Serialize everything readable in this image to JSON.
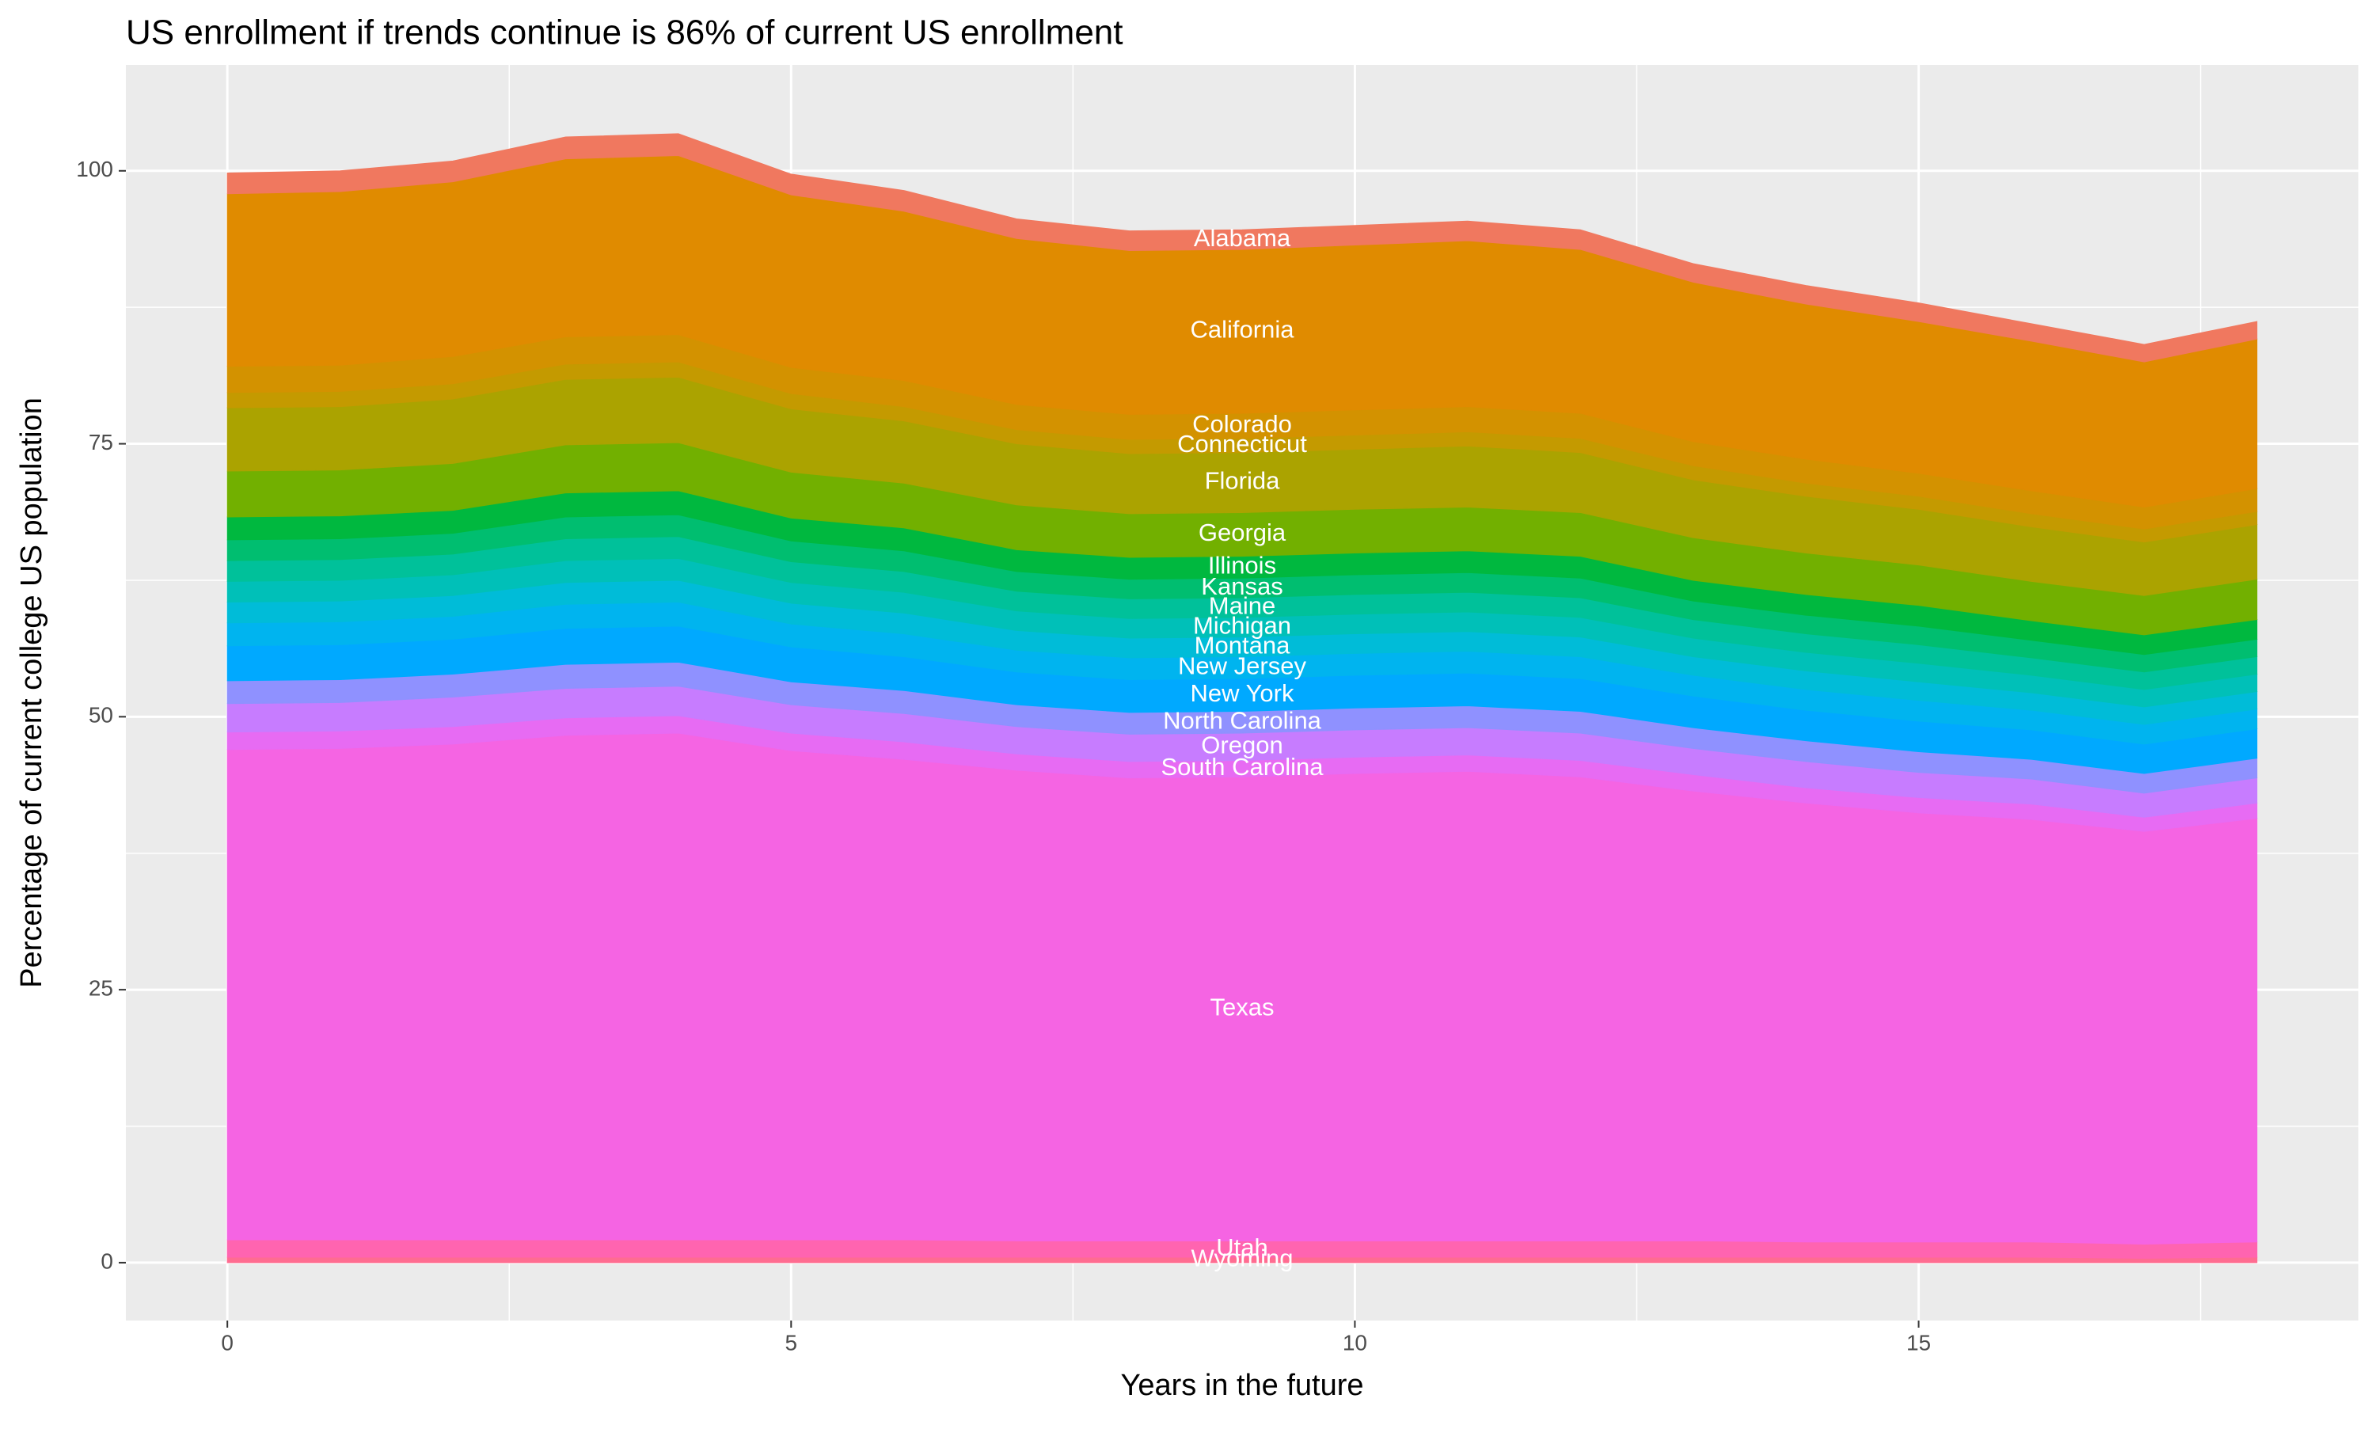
{
  "chart_data": {
    "type": "stacked_area",
    "title": "US enrollment if trends continue is 86% of current US enrollment",
    "x_label": "Years in the future",
    "y_label": "Percentage of current college US population",
    "x": [
      0,
      1,
      2,
      3,
      4,
      5,
      6,
      7,
      8,
      9,
      10,
      11,
      12,
      13,
      14,
      15,
      16,
      17,
      18
    ],
    "xlim": [
      -0.9,
      18.9
    ],
    "ylim": [
      -5.3,
      109.7
    ],
    "xticks": [
      0,
      5,
      10,
      15
    ],
    "yticks": [
      0,
      25,
      50,
      75,
      100
    ],
    "grid": true,
    "label_at_x": 9,
    "series": [
      {
        "name": "Wyoming",
        "color": "#ff6c91",
        "values": [
          0.5,
          0.5,
          0.5,
          0.5,
          0.5,
          0.5,
          0.5,
          0.5,
          0.5,
          0.5,
          0.5,
          0.5,
          0.5,
          0.5,
          0.5,
          0.5,
          0.5,
          0.4,
          0.5
        ]
      },
      {
        "name": "Utah",
        "color": "#ff64b0",
        "values": [
          1.6,
          1.6,
          1.6,
          1.6,
          1.6,
          1.6,
          1.6,
          1.5,
          1.5,
          1.5,
          1.5,
          1.5,
          1.5,
          1.5,
          1.4,
          1.4,
          1.4,
          1.3,
          1.4
        ]
      },
      {
        "name": "Texas",
        "color": "#f564e3",
        "values": [
          44.9,
          45.0,
          45.4,
          46.2,
          46.4,
          44.8,
          44.0,
          43.1,
          42.4,
          42.5,
          42.8,
          43.0,
          42.5,
          41.2,
          40.2,
          39.3,
          38.7,
          37.8,
          38.8
        ]
      },
      {
        "name": "South Carolina",
        "color": "#e76bf3",
        "values": [
          1.6,
          1.6,
          1.6,
          1.6,
          1.6,
          1.6,
          1.6,
          1.5,
          1.5,
          1.5,
          1.5,
          1.5,
          1.5,
          1.5,
          1.4,
          1.4,
          1.4,
          1.3,
          1.4
        ]
      },
      {
        "name": "Oregon",
        "color": "#c77cff",
        "values": [
          2.6,
          2.6,
          2.7,
          2.7,
          2.7,
          2.6,
          2.6,
          2.5,
          2.5,
          2.5,
          2.5,
          2.5,
          2.5,
          2.4,
          2.4,
          2.3,
          2.3,
          2.2,
          2.3
        ]
      },
      {
        "name": "North Carolina",
        "color": "#8f91ff",
        "values": [
          2.1,
          2.1,
          2.1,
          2.2,
          2.2,
          2.1,
          2.1,
          2.0,
          2.0,
          2.0,
          2.0,
          2.0,
          2.0,
          1.9,
          1.9,
          1.9,
          1.8,
          1.8,
          1.8
        ]
      },
      {
        "name": "New York",
        "color": "#00a9ff",
        "values": [
          3.2,
          3.2,
          3.2,
          3.3,
          3.3,
          3.2,
          3.1,
          3.0,
          3.0,
          3.0,
          3.0,
          3.0,
          3.0,
          2.9,
          2.8,
          2.8,
          2.7,
          2.7,
          2.7
        ]
      },
      {
        "name": "New Jersey",
        "color": "#00b4ef",
        "values": [
          2.1,
          2.1,
          2.1,
          2.2,
          2.2,
          2.1,
          2.1,
          2.0,
          2.0,
          2.0,
          2.0,
          2.0,
          2.0,
          1.9,
          1.9,
          1.9,
          1.8,
          1.8,
          1.8
        ]
      },
      {
        "name": "Montana",
        "color": "#00bcd8",
        "values": [
          1.9,
          1.9,
          1.9,
          2.0,
          2.0,
          1.9,
          1.9,
          1.8,
          1.8,
          1.8,
          1.8,
          1.8,
          1.8,
          1.7,
          1.7,
          1.7,
          1.6,
          1.6,
          1.6
        ]
      },
      {
        "name": "Michigan",
        "color": "#00c0b8",
        "values": [
          1.9,
          1.9,
          1.9,
          2.0,
          2.0,
          1.9,
          1.9,
          1.8,
          1.8,
          1.8,
          1.8,
          1.8,
          1.8,
          1.7,
          1.7,
          1.7,
          1.6,
          1.6,
          1.6
        ]
      },
      {
        "name": "Maine",
        "color": "#00c19a",
        "values": [
          1.9,
          1.9,
          1.9,
          2.0,
          2.0,
          1.9,
          1.9,
          1.8,
          1.8,
          1.8,
          1.8,
          1.8,
          1.8,
          1.7,
          1.7,
          1.7,
          1.6,
          1.6,
          1.6
        ]
      },
      {
        "name": "Kansas",
        "color": "#00be70",
        "values": [
          1.9,
          1.9,
          1.9,
          2.0,
          2.0,
          1.9,
          1.9,
          1.8,
          1.8,
          1.8,
          1.8,
          1.8,
          1.8,
          1.7,
          1.7,
          1.7,
          1.6,
          1.6,
          1.6
        ]
      },
      {
        "name": "Illinois",
        "color": "#00b83f",
        "values": [
          2.1,
          2.1,
          2.1,
          2.2,
          2.2,
          2.1,
          2.1,
          2.0,
          2.0,
          2.0,
          2.0,
          2.0,
          2.0,
          1.9,
          1.9,
          1.9,
          1.8,
          1.8,
          1.8
        ]
      },
      {
        "name": "Georgia",
        "color": "#72b000",
        "values": [
          4.2,
          4.2,
          4.3,
          4.4,
          4.4,
          4.2,
          4.1,
          4.1,
          4.0,
          4.0,
          4.0,
          4.0,
          4.0,
          3.9,
          3.8,
          3.7,
          3.6,
          3.6,
          3.7
        ]
      },
      {
        "name": "Florida",
        "color": "#aba300",
        "values": [
          5.8,
          5.8,
          5.9,
          6.0,
          6.0,
          5.8,
          5.7,
          5.6,
          5.5,
          5.5,
          5.5,
          5.6,
          5.5,
          5.3,
          5.2,
          5.1,
          5.0,
          4.9,
          5.0
        ]
      },
      {
        "name": "Connecticut",
        "color": "#c49a00",
        "values": [
          1.4,
          1.4,
          1.4,
          1.4,
          1.4,
          1.4,
          1.3,
          1.3,
          1.3,
          1.3,
          1.3,
          1.3,
          1.3,
          1.3,
          1.2,
          1.2,
          1.2,
          1.2,
          1.2
        ]
      },
      {
        "name": "Colorado",
        "color": "#d39200",
        "values": [
          2.4,
          2.4,
          2.5,
          2.5,
          2.5,
          2.4,
          2.4,
          2.3,
          2.3,
          2.3,
          2.3,
          2.3,
          2.3,
          2.2,
          2.2,
          2.1,
          2.1,
          2.0,
          2.1
        ]
      },
      {
        "name": "California",
        "color": "#e08b00",
        "values": [
          15.8,
          15.9,
          16.0,
          16.3,
          16.4,
          15.8,
          15.5,
          15.2,
          15.0,
          15.0,
          15.1,
          15.2,
          15.0,
          14.6,
          14.2,
          13.9,
          13.7,
          13.3,
          13.7
        ]
      },
      {
        "name": "Alabama",
        "color": "#f0785f",
        "values": [
          1.9,
          1.9,
          1.9,
          2.0,
          2.0,
          1.9,
          1.9,
          1.8,
          1.8,
          1.8,
          1.8,
          1.8,
          1.8,
          1.7,
          1.7,
          1.7,
          1.6,
          1.6,
          1.6
        ]
      }
    ]
  }
}
